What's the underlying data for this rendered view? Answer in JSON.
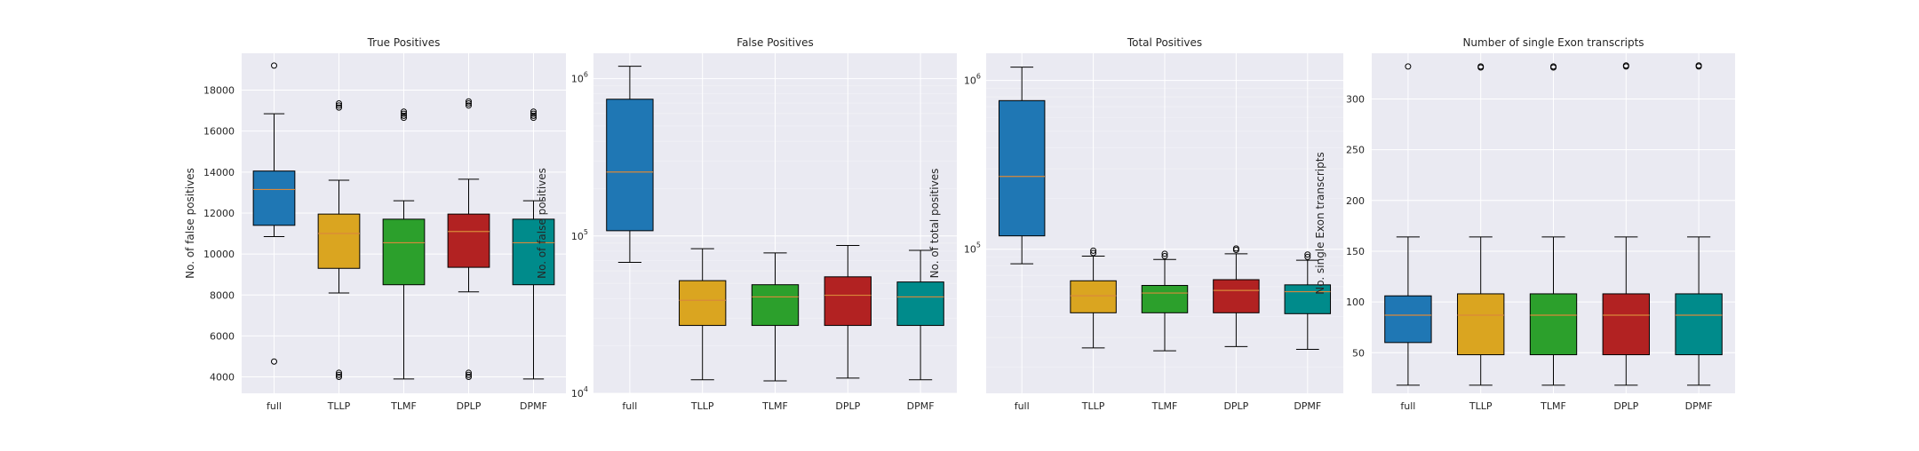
{
  "chart_data": [
    {
      "type": "box",
      "title": "True Positives",
      "xlabel": "",
      "ylabel": "No. of false positives",
      "yscale": "linear",
      "ylim": [
        3200,
        19800
      ],
      "yticks": [
        4000,
        6000,
        8000,
        10000,
        12000,
        14000,
        16000,
        18000
      ],
      "ytick_labels": [
        "4000",
        "6000",
        "8000",
        "10000",
        "12000",
        "14000",
        "16000",
        "18000"
      ],
      "categories": [
        "full",
        "TLLP",
        "TLMF",
        "DPLP",
        "DPMF"
      ],
      "boxes": [
        {
          "whislo": 10850,
          "q1": 11400,
          "med": 13150,
          "q3": 14050,
          "whishi": 16850,
          "fliers": [
            19200,
            4750
          ]
        },
        {
          "whislo": 8100,
          "q1": 9300,
          "med": 11000,
          "q3": 11950,
          "whishi": 13600,
          "fliers": [
            17350,
            17250,
            17150,
            4200,
            4100,
            4000
          ]
        },
        {
          "whislo": 3900,
          "q1": 8500,
          "med": 10550,
          "q3": 11700,
          "whishi": 12600,
          "fliers": [
            16950,
            16850,
            16750,
            16650
          ]
        },
        {
          "whislo": 8150,
          "q1": 9350,
          "med": 11100,
          "q3": 11950,
          "whishi": 13650,
          "fliers": [
            17450,
            17350,
            17250,
            4200,
            4100,
            4000
          ]
        },
        {
          "whislo": 3900,
          "q1": 8500,
          "med": 10550,
          "q3": 11700,
          "whishi": 12600,
          "fliers": [
            16950,
            16850,
            16750,
            16650
          ]
        }
      ]
    },
    {
      "type": "box",
      "title": "False Positives",
      "xlabel": "",
      "ylabel": "No. of false positives",
      "yscale": "log",
      "ylim": [
        10000,
        1450000
      ],
      "yticks": [
        10000,
        100000,
        1000000
      ],
      "ytick_labels": [
        "10⁴",
        "10⁵",
        "10⁶"
      ],
      "categories": [
        "full",
        "TLLP",
        "TLMF",
        "DPLP",
        "DPMF"
      ],
      "boxes": [
        {
          "whislo": 68000,
          "q1": 108000,
          "med": 255000,
          "q3": 740000,
          "whishi": 1200000,
          "fliers": []
        },
        {
          "whislo": 12200,
          "q1": 27000,
          "med": 39000,
          "q3": 52000,
          "whishi": 83000,
          "fliers": []
        },
        {
          "whislo": 12000,
          "q1": 27000,
          "med": 41000,
          "q3": 49000,
          "whishi": 78000,
          "fliers": []
        },
        {
          "whislo": 12500,
          "q1": 27000,
          "med": 42000,
          "q3": 55000,
          "whishi": 87000,
          "fliers": []
        },
        {
          "whislo": 12200,
          "q1": 27000,
          "med": 41000,
          "q3": 51000,
          "whishi": 81000,
          "fliers": []
        }
      ]
    },
    {
      "type": "box",
      "title": "Total Positives",
      "xlabel": "",
      "ylabel": "No. of total positives",
      "yscale": "log",
      "ylim": [
        14000,
        1450000
      ],
      "yticks": [
        100000,
        1000000
      ],
      "ytick_labels": [
        "10⁵",
        "10⁶"
      ],
      "categories": [
        "full",
        "TLLP",
        "TLMF",
        "DPLP",
        "DPMF"
      ],
      "boxes": [
        {
          "whislo": 82000,
          "q1": 120000,
          "med": 270000,
          "q3": 760000,
          "whishi": 1200000,
          "fliers": []
        },
        {
          "whislo": 26000,
          "q1": 42000,
          "med": 53000,
          "q3": 65000,
          "whishi": 91000,
          "fliers": [
            98000,
            95000
          ]
        },
        {
          "whislo": 25000,
          "q1": 42000,
          "med": 55000,
          "q3": 61000,
          "whishi": 87000,
          "fliers": [
            94000,
            91000
          ]
        },
        {
          "whislo": 26500,
          "q1": 42000,
          "med": 57000,
          "q3": 66000,
          "whishi": 94000,
          "fliers": [
            101000,
            99000
          ]
        },
        {
          "whislo": 25500,
          "q1": 41500,
          "med": 56000,
          "q3": 61500,
          "whishi": 86000,
          "fliers": [
            93000,
            90000
          ]
        }
      ]
    },
    {
      "type": "box",
      "title": "Number of single Exon transcripts",
      "xlabel": "",
      "ylabel": "No. single Exon transcripts",
      "yscale": "linear",
      "ylim": [
        10,
        345
      ],
      "yticks": [
        50,
        100,
        150,
        200,
        250,
        300
      ],
      "ytick_labels": [
        "50",
        "100",
        "150",
        "200",
        "250",
        "300"
      ],
      "categories": [
        "full",
        "TLLP",
        "TLMF",
        "DPLP",
        "DPMF"
      ],
      "boxes": [
        {
          "whislo": 18,
          "q1": 60,
          "med": 87,
          "q3": 106,
          "whishi": 164,
          "fliers": [
            332
          ]
        },
        {
          "whislo": 18,
          "q1": 48,
          "med": 87,
          "q3": 108,
          "whishi": 164,
          "fliers": [
            332,
            331
          ]
        },
        {
          "whislo": 18,
          "q1": 48,
          "med": 87,
          "q3": 108,
          "whishi": 164,
          "fliers": [
            332,
            331
          ]
        },
        {
          "whislo": 18,
          "q1": 48,
          "med": 87,
          "q3": 108,
          "whishi": 164,
          "fliers": [
            333,
            332
          ]
        },
        {
          "whislo": 18,
          "q1": 48,
          "med": 87,
          "q3": 108,
          "whishi": 164,
          "fliers": [
            333,
            332
          ]
        }
      ]
    }
  ],
  "colors": {
    "background": "#eaeaf2",
    "grid": "#ffffff",
    "median": "#d9893a",
    "boxes": [
      "#1f77b4",
      "#daa520",
      "#2ca02c",
      "#b22222",
      "#008b8b"
    ]
  }
}
